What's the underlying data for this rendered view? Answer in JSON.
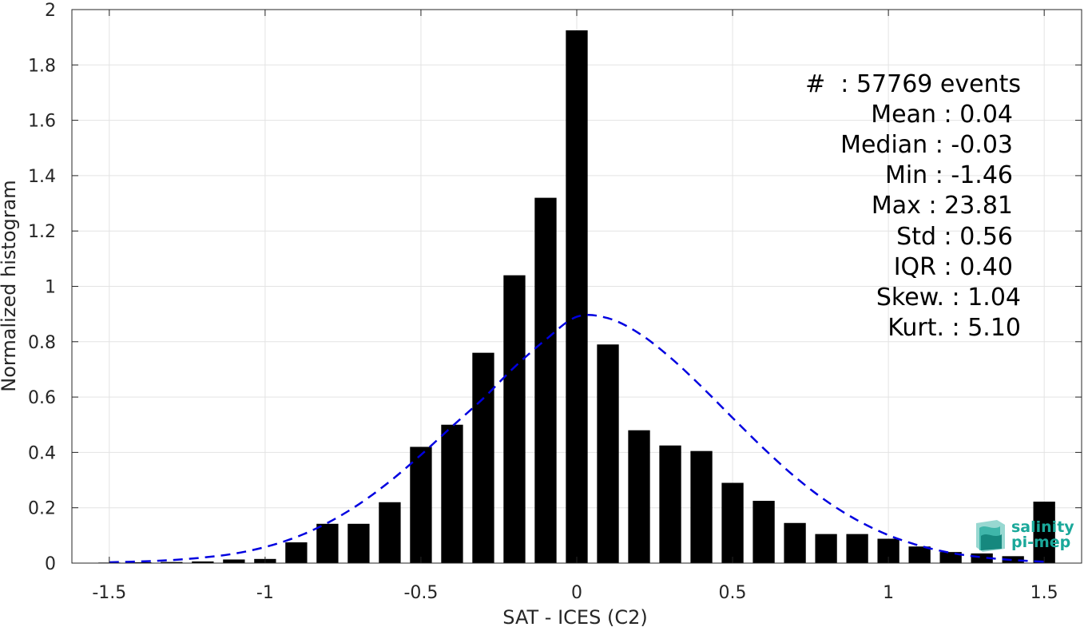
{
  "chart_data": {
    "type": "bar",
    "xlabel": "SAT - ICES (C2)",
    "ylabel": "Normalized histogram",
    "xlim": [
      -1.62,
      1.62
    ],
    "ylim": [
      0,
      2
    ],
    "x_ticks": [
      -1.5,
      -1,
      -0.5,
      0,
      0.5,
      1,
      1.5
    ],
    "x_tick_labels": [
      "-1.5",
      "-1",
      "-0.5",
      "0",
      "0.5",
      "1",
      "1.5"
    ],
    "y_ticks": [
      0,
      0.2,
      0.4,
      0.6,
      0.8,
      1,
      1.2,
      1.4,
      1.6,
      1.8,
      2
    ],
    "y_tick_labels": [
      "0",
      "0.2",
      "0.4",
      "0.6",
      "0.8",
      "1",
      "1.2",
      "1.4",
      "1.6",
      "1.8",
      "2"
    ],
    "grid": true,
    "bar_width": 0.07,
    "bar_color": "#000000",
    "series": [
      {
        "values": [
          {
            "x": -1.5,
            "y": 0.002
          },
          {
            "x": -1.4,
            "y": 0.003
          },
          {
            "x": -1.3,
            "y": 0.004
          },
          {
            "x": -1.2,
            "y": 0.006
          },
          {
            "x": -1.1,
            "y": 0.013
          },
          {
            "x": -1.0,
            "y": 0.015
          },
          {
            "x": -0.9,
            "y": 0.075
          },
          {
            "x": -0.8,
            "y": 0.142
          },
          {
            "x": -0.7,
            "y": 0.142
          },
          {
            "x": -0.6,
            "y": 0.22
          },
          {
            "x": -0.5,
            "y": 0.42
          },
          {
            "x": -0.4,
            "y": 0.5
          },
          {
            "x": -0.3,
            "y": 0.76
          },
          {
            "x": -0.2,
            "y": 1.04
          },
          {
            "x": -0.1,
            "y": 1.32
          },
          {
            "x": 0.0,
            "y": 1.925
          },
          {
            "x": 0.1,
            "y": 0.79
          },
          {
            "x": 0.2,
            "y": 0.48
          },
          {
            "x": 0.3,
            "y": 0.425
          },
          {
            "x": 0.4,
            "y": 0.405
          },
          {
            "x": 0.5,
            "y": 0.29
          },
          {
            "x": 0.6,
            "y": 0.225
          },
          {
            "x": 0.7,
            "y": 0.145
          },
          {
            "x": 0.8,
            "y": 0.105
          },
          {
            "x": 0.9,
            "y": 0.105
          },
          {
            "x": 1.0,
            "y": 0.088
          },
          {
            "x": 1.1,
            "y": 0.06
          },
          {
            "x": 1.2,
            "y": 0.04
          },
          {
            "x": 1.3,
            "y": 0.035
          },
          {
            "x": 1.4,
            "y": 0.025
          },
          {
            "x": 1.5,
            "y": 0.222
          }
        ]
      },
      {
        "type": "line",
        "style": "dashed",
        "color": "#0000e0",
        "values": [
          {
            "x": -1.5,
            "y": 0.003
          },
          {
            "x": -1.4,
            "y": 0.006
          },
          {
            "x": -1.3,
            "y": 0.011
          },
          {
            "x": -1.2,
            "y": 0.02
          },
          {
            "x": -1.1,
            "y": 0.034
          },
          {
            "x": -1.0,
            "y": 0.058
          },
          {
            "x": -0.9,
            "y": 0.094
          },
          {
            "x": -0.8,
            "y": 0.145
          },
          {
            "x": -0.7,
            "y": 0.212
          },
          {
            "x": -0.6,
            "y": 0.295
          },
          {
            "x": -0.5,
            "y": 0.391
          },
          {
            "x": -0.4,
            "y": 0.494
          },
          {
            "x": -0.3,
            "y": 0.595
          },
          {
            "x": -0.2,
            "y": 0.708
          },
          {
            "x": -0.1,
            "y": 0.807
          },
          {
            "x": 0.0,
            "y": 0.89
          },
          {
            "x": 0.1,
            "y": 0.885
          },
          {
            "x": 0.2,
            "y": 0.83
          },
          {
            "x": 0.3,
            "y": 0.743
          },
          {
            "x": 0.4,
            "y": 0.638
          },
          {
            "x": 0.5,
            "y": 0.525
          },
          {
            "x": 0.6,
            "y": 0.414
          },
          {
            "x": 0.7,
            "y": 0.312
          },
          {
            "x": 0.8,
            "y": 0.225
          },
          {
            "x": 0.9,
            "y": 0.155
          },
          {
            "x": 1.0,
            "y": 0.101
          },
          {
            "x": 1.1,
            "y": 0.063
          },
          {
            "x": 1.2,
            "y": 0.037
          },
          {
            "x": 1.3,
            "y": 0.021
          },
          {
            "x": 1.4,
            "y": 0.011
          },
          {
            "x": 1.5,
            "y": 0.005
          }
        ]
      }
    ]
  },
  "stats": {
    "events": "#  : 57769 events",
    "mean": "Mean : 0.04",
    "median": "Median : -0.03",
    "min": "Min : -1.46",
    "max": "Max : 23.81",
    "std": "Std : 0.56",
    "iqr": "IQR : 0.40",
    "skew": "Skew. : 1.04",
    "kurt": "Kurt. : 5.10"
  },
  "logo": {
    "line1": "salinity",
    "line2": "pi-mep",
    "color": "#1aa89a"
  }
}
